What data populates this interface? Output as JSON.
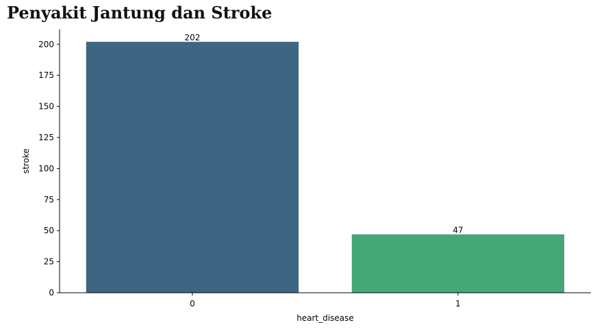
{
  "chart_data": {
    "type": "bar",
    "title": "Penyakit Jantung dan Stroke",
    "xlabel": "heart_disease",
    "ylabel": "stroke",
    "categories": [
      "0",
      "1"
    ],
    "values": [
      202,
      47
    ],
    "data_labels": [
      "202",
      "47"
    ],
    "colors": [
      "#3e6683",
      "#45a776"
    ],
    "ylim": [
      0,
      212
    ],
    "yticks": [
      0,
      25,
      50,
      75,
      100,
      125,
      150,
      175,
      200
    ],
    "grid": false,
    "legend": "none"
  }
}
